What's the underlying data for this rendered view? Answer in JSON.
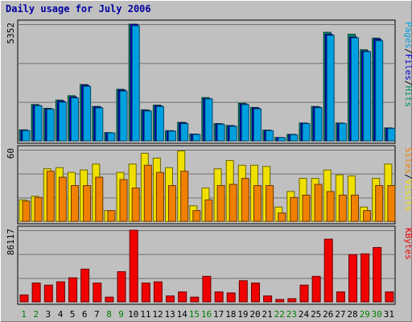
{
  "chart_data": [
    {
      "type": "bar",
      "title": "Daily usage for July 2006",
      "ymax_label": "5352",
      "ylim": [
        0,
        5352
      ],
      "categories": [
        "1",
        "2",
        "3",
        "4",
        "5",
        "6",
        "7",
        "8",
        "9",
        "10",
        "11",
        "12",
        "13",
        "14",
        "15",
        "16",
        "17",
        "18",
        "19",
        "20",
        "21",
        "22",
        "23",
        "24",
        "25",
        "26",
        "27",
        "28",
        "29",
        "30",
        "31"
      ],
      "weekend_days": [
        "1",
        "2",
        "8",
        "9",
        "15",
        "16",
        "22",
        "23",
        "29",
        "30"
      ],
      "ylabel_parts": [
        "Pages",
        "/",
        "Files",
        "/",
        "Hits"
      ],
      "series": [
        {
          "name": "Hits",
          "color": "#009070",
          "values": [
            505,
            1670,
            1495,
            1870,
            2070,
            2585,
            1580,
            380,
            2365,
            5352,
            1425,
            1640,
            470,
            850,
            315,
            1985,
            795,
            705,
            1725,
            1535,
            495,
            155,
            300,
            820,
            1575,
            4980,
            820,
            4890,
            4180,
            4715,
            595
          ]
        },
        {
          "name": "Files",
          "color": "#0000d0",
          "values": [
            490,
            1625,
            1470,
            1825,
            2010,
            2545,
            1555,
            370,
            2330,
            5340,
            1395,
            1610,
            460,
            830,
            305,
            1940,
            780,
            690,
            1690,
            1505,
            480,
            150,
            295,
            805,
            1550,
            4890,
            805,
            4760,
            4120,
            4660,
            580
          ]
        },
        {
          "name": "Pages",
          "color": "#00a0e0",
          "values": [
            470,
            1610,
            1450,
            1770,
            1970,
            2500,
            1510,
            360,
            2280,
            5280,
            1370,
            1575,
            445,
            790,
            290,
            1925,
            760,
            665,
            1665,
            1465,
            465,
            145,
            280,
            790,
            1520,
            4840,
            795,
            4725,
            4090,
            4590,
            570
          ]
        }
      ]
    },
    {
      "type": "bar",
      "ymax_label": "60",
      "ylim": [
        0,
        60
      ],
      "categories": [
        "1",
        "2",
        "3",
        "4",
        "5",
        "6",
        "7",
        "8",
        "9",
        "10",
        "11",
        "12",
        "13",
        "14",
        "15",
        "16",
        "17",
        "18",
        "19",
        "20",
        "21",
        "22",
        "23",
        "24",
        "25",
        "26",
        "27",
        "28",
        "29",
        "30",
        "31"
      ],
      "ylabel_parts": [
        "Sites",
        "/",
        "Visits"
      ],
      "series": [
        {
          "name": "Visits",
          "color": "#f0e000",
          "values": [
            18,
            21,
            44,
            45,
            41,
            43,
            48,
            9,
            41,
            48,
            57,
            53,
            45,
            59,
            13,
            28,
            44,
            51,
            47,
            47,
            46,
            12,
            25,
            36,
            36,
            43,
            39,
            38,
            12,
            36,
            48
          ]
        },
        {
          "name": "Sites",
          "color": "#f08000",
          "values": [
            17,
            20,
            42,
            37,
            30,
            30,
            37,
            9,
            35,
            28,
            47,
            41,
            30,
            42,
            9,
            18,
            30,
            31,
            36,
            30,
            30,
            7,
            20,
            22,
            31,
            25,
            22,
            22,
            9,
            30,
            30
          ]
        }
      ]
    },
    {
      "type": "bar",
      "ymax_label": "86117",
      "ylim": [
        0,
        86117
      ],
      "categories": [
        "1",
        "2",
        "3",
        "4",
        "5",
        "6",
        "7",
        "8",
        "9",
        "10",
        "11",
        "12",
        "13",
        "14",
        "15",
        "16",
        "17",
        "18",
        "19",
        "20",
        "21",
        "22",
        "23",
        "24",
        "25",
        "26",
        "27",
        "28",
        "29",
        "30",
        "31"
      ],
      "ylabel_parts": [
        "KBytes"
      ],
      "series": [
        {
          "name": "KBytes",
          "color": "#f00000",
          "values": [
            8300,
            22600,
            20100,
            24100,
            28900,
            39400,
            22600,
            5700,
            36300,
            86117,
            22600,
            24100,
            7200,
            12000,
            5700,
            30700,
            12000,
            10700,
            25400,
            22600,
            7200,
            2900,
            3900,
            20100,
            30700,
            75400,
            12000,
            56800,
            57800,
            65300,
            12000
          ]
        }
      ]
    }
  ]
}
